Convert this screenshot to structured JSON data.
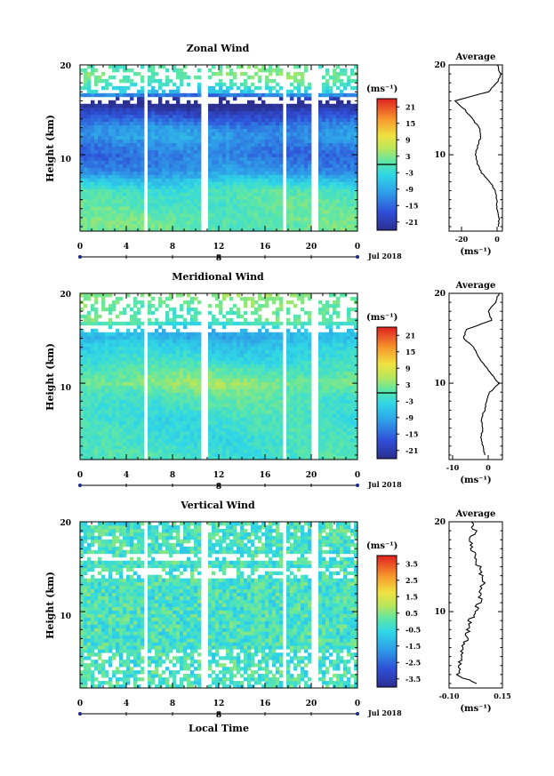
{
  "figure": {
    "xlabel": "Local Time",
    "day_label": "8",
    "month_label": "Jul 2018",
    "x_ticks": [
      "0",
      "4",
      "8",
      "12",
      "16",
      "20",
      "0"
    ],
    "y_ticks": [
      "10",
      "20"
    ],
    "ylabel": "Height (km)",
    "unit": "(ms⁻¹)",
    "avg_title": "Average"
  },
  "chart_data": [
    {
      "type": "heatmap",
      "title": "Zonal Wind",
      "xlim": [
        0,
        24
      ],
      "ylim": [
        1.5,
        20
      ],
      "gaps_hours": [
        5.7,
        10.8,
        17.7,
        20.3
      ],
      "colorbar": {
        "ticks": [
          "21",
          "15",
          "9",
          "3",
          "-3",
          "-9",
          "-15",
          "-21"
        ],
        "range": [
          -24,
          24
        ],
        "contour_level": 0
      },
      "profile": {
        "xlim": [
          -27,
          3
        ],
        "xticks": [
          "-20",
          "0"
        ],
        "heights": [
          2,
          3,
          4,
          5,
          6,
          7,
          8,
          9,
          10,
          11,
          12,
          13,
          14,
          15,
          16,
          17,
          18,
          19,
          20
        ],
        "values": [
          1,
          1,
          0,
          0,
          -1,
          -4,
          -9,
          -11,
          -12,
          -11,
          -9,
          -10,
          -14,
          -18,
          -24,
          -5,
          0,
          2,
          0
        ]
      }
    },
    {
      "type": "heatmap",
      "title": "Meridional Wind",
      "xlim": [
        0,
        24
      ],
      "ylim": [
        1.5,
        20
      ],
      "gaps_hours": [
        5.7,
        10.8,
        17.7,
        20.3
      ],
      "colorbar": {
        "ticks": [
          "21",
          "15",
          "9",
          "3",
          "-3",
          "-9",
          "-15",
          "-21"
        ],
        "range": [
          -24,
          24
        ],
        "contour_level": 0
      },
      "profile": {
        "xlim": [
          -11,
          4
        ],
        "xticks": [
          "-10",
          "0"
        ],
        "heights": [
          2,
          3,
          4,
          5,
          6,
          7,
          8,
          9,
          10,
          11,
          12,
          13,
          14,
          15,
          16,
          17,
          18,
          19,
          20
        ],
        "values": [
          -1,
          -1.5,
          -2,
          -1.5,
          -2,
          -1,
          -0.5,
          0.5,
          3,
          1,
          -1,
          -3,
          -4,
          -7,
          -6,
          1,
          0,
          2,
          3
        ]
      }
    },
    {
      "type": "heatmap",
      "title": "Vertical Wind",
      "xlim": [
        0,
        24
      ],
      "ylim": [
        1.5,
        20
      ],
      "gaps_hours": [
        5.7,
        10.8,
        17.7,
        20.3
      ],
      "colorbar": {
        "ticks": [
          "3.5",
          "2.5",
          "1.5",
          "0.5",
          "-0.5",
          "-1.5",
          "-2.5",
          "-3.5"
        ],
        "range": [
          -4,
          4
        ],
        "contour_level": null
      },
      "profile": {
        "xlim": [
          -0.1,
          0.15
        ],
        "xticks": [
          "-0.10",
          "0.15"
        ],
        "heights": [
          2,
          3,
          4,
          5,
          6,
          7,
          8,
          9,
          10,
          11,
          12,
          13,
          14,
          15,
          16,
          17,
          18,
          19,
          20
        ],
        "values": [
          0.02,
          -0.06,
          -0.05,
          -0.04,
          -0.03,
          -0.02,
          -0.01,
          0.0,
          0.02,
          0.04,
          0.05,
          0.06,
          0.05,
          0.04,
          0.02,
          0.01,
          0.0,
          0.02,
          0.0
        ]
      }
    }
  ]
}
